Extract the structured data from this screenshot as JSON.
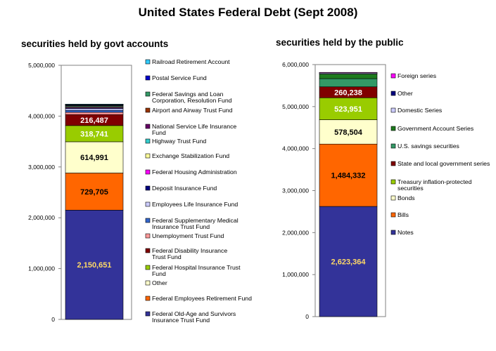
{
  "title": "United States Federal Debt (Sept 2008)",
  "chart_data": [
    {
      "type": "bar",
      "subtitle": "securities held by govt accounts",
      "ylim": [
        0,
        5000000
      ],
      "yticks": [
        "0",
        "1,000,000",
        "2,000,000",
        "3,000,000",
        "4,000,000",
        "5,000,000"
      ],
      "grid": false,
      "legend_placement": "right",
      "series": [
        {
          "name": "Federal Old-Age and Survivors Insurance Trust Fund",
          "value": 2150651,
          "label": "2,150,651",
          "color": "#333399",
          "text_color": "#FFD966"
        },
        {
          "name": "Federal Employees Retirement Fund",
          "value": 729705,
          "label": "729,705",
          "color": "#FF6600",
          "text_color": "#000000"
        },
        {
          "name": "Other",
          "value": 614991,
          "label": "614,991",
          "color": "#FFFFCC",
          "text_color": "#000000"
        },
        {
          "name": "Federal Hospital Insurance Trust Fund",
          "value": 318741,
          "label": "318,741",
          "color": "#99CC00",
          "text_color": "#FFFFFF"
        },
        {
          "name": "Federal Disability Insurance Trust Fund",
          "value": 216487,
          "label": "216,487",
          "color": "#800000",
          "text_color": "#FFFFFF"
        },
        {
          "name": "Unemployment Trust Fund",
          "value": 45000,
          "color": "#FF9999"
        },
        {
          "name": "Federal Supplementary Medical Insurance Trust Fund",
          "value": 40000,
          "color": "#3366CC"
        },
        {
          "name": "Employees Life Insurance Fund",
          "value": 35000,
          "color": "#CCCCFF"
        },
        {
          "name": "Deposit Insurance Fund",
          "value": 15000,
          "color": "#000080"
        },
        {
          "name": "Federal Housing Administration",
          "value": 10000,
          "color": "#FF00FF"
        },
        {
          "name": "Exchange Stabilization Fund",
          "value": 16000,
          "color": "#FFFF99"
        },
        {
          "name": "Highway Trust Fund",
          "value": 15000,
          "color": "#33CCCC"
        },
        {
          "name": "National Service Life Insurance Fund",
          "value": 10000,
          "color": "#660066"
        },
        {
          "name": "Airport and Airway Trust Fund",
          "value": 10000,
          "color": "#993300"
        },
        {
          "name": "Federal Savings and Loan Corporation, Resolution Fund",
          "value": 3000,
          "color": "#339966"
        },
        {
          "name": "Postal Service Fund",
          "value": 3000,
          "color": "#0000CC"
        },
        {
          "name": "Railroad Retirement Account",
          "value": 3000,
          "color": "#33CCFF"
        }
      ]
    },
    {
      "type": "bar",
      "subtitle": "securities held by the public",
      "ylim": [
        0,
        6000000
      ],
      "yticks": [
        "0",
        "1,000,000",
        "2,000,000",
        "3,000,000",
        "4,000,000",
        "5,000,000",
        "6,000,000"
      ],
      "grid": false,
      "legend_placement": "right",
      "series": [
        {
          "name": "Notes",
          "value": 2623364,
          "label": "2,623,364",
          "color": "#333399",
          "text_color": "#FFD966"
        },
        {
          "name": "Bills",
          "value": 1484332,
          "label": "1,484,332",
          "color": "#FF6600",
          "text_color": "#000000"
        },
        {
          "name": "Bonds",
          "value": 578504,
          "label": "578,504",
          "color": "#FFFFCC",
          "text_color": "#000000"
        },
        {
          "name": "Treasury inflation-protected securities",
          "value": 523951,
          "label": "523,951",
          "color": "#99CC00",
          "text_color": "#FFFFFF"
        },
        {
          "name": "State and local government series",
          "value": 260238,
          "label": "260,238",
          "color": "#800000",
          "text_color": "#FFFFFF"
        },
        {
          "name": "U.S. savings securities",
          "value": 195000,
          "color": "#339966"
        },
        {
          "name": "Government Account Series",
          "value": 110000,
          "color": "#1E7B1E"
        },
        {
          "name": "Domestic Series",
          "value": 30000,
          "color": "#CCCCFF"
        },
        {
          "name": "Other",
          "value": 5000,
          "color": "#000080"
        },
        {
          "name": "Foreign series",
          "value": 3000,
          "color": "#FF00FF"
        }
      ]
    }
  ]
}
